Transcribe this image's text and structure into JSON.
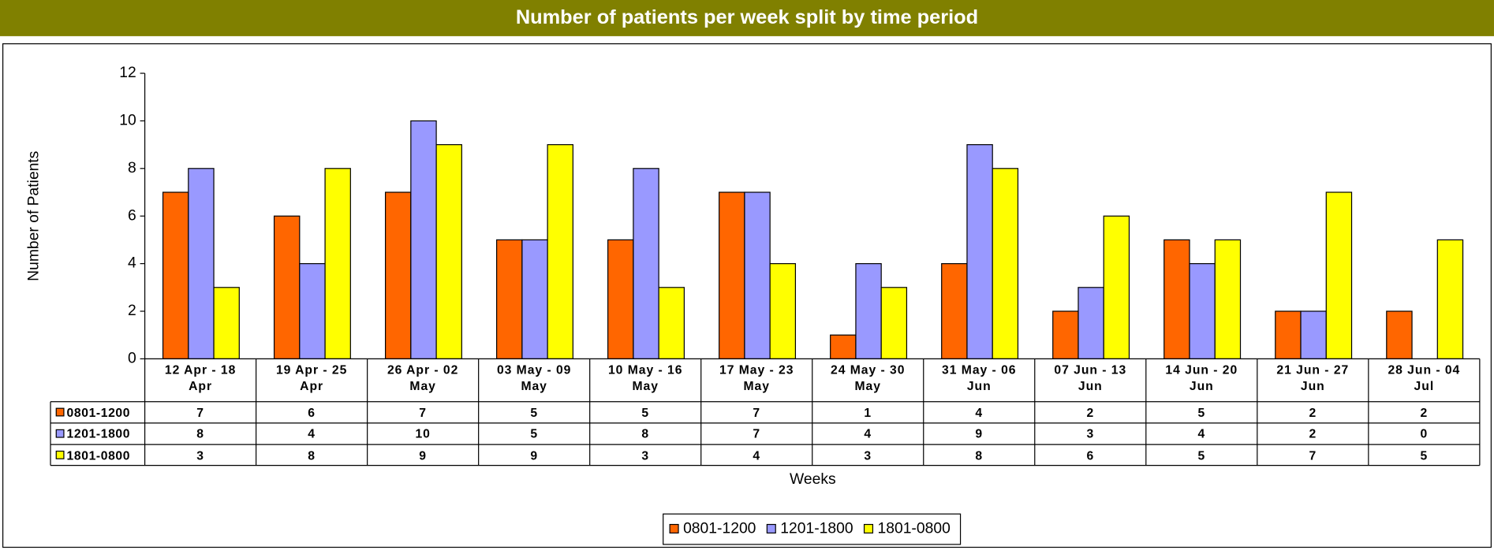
{
  "chart_data": {
    "type": "bar",
    "title": "Number of patients per week split by time period",
    "x_label": "Weeks",
    "y_label": "Number of Patients",
    "categories": [
      "12 Apr - 18 Apr",
      "19 Apr - 25 Apr",
      "26 Apr - 02 May",
      "03 May - 09 May",
      "10 May - 16 May",
      "17 May - 23 May",
      "24 May - 30 May",
      "31 May - 06 Jun",
      "07 Jun - 13 Jun",
      "14 Jun - 20 Jun",
      "21 Jun - 27 Jun",
      "28 Jun - 04 Jul"
    ],
    "series": [
      {
        "name": "0801-1200",
        "color": "#ff6600",
        "values": [
          7,
          6,
          7,
          5,
          5,
          7,
          1,
          4,
          2,
          5,
          2,
          2
        ]
      },
      {
        "name": "1201-1800",
        "color": "#9999ff",
        "values": [
          8,
          4,
          10,
          5,
          8,
          7,
          4,
          9,
          3,
          4,
          2,
          0
        ]
      },
      {
        "name": "1801-0800",
        "color": "#ffff00",
        "values": [
          3,
          8,
          9,
          9,
          3,
          4,
          3,
          8,
          6,
          5,
          7,
          5
        ]
      }
    ],
    "ylim": [
      0,
      12
    ],
    "yticks": [
      0,
      2,
      4,
      6,
      8,
      10,
      12
    ],
    "grid": false,
    "legend": "bottom"
  }
}
